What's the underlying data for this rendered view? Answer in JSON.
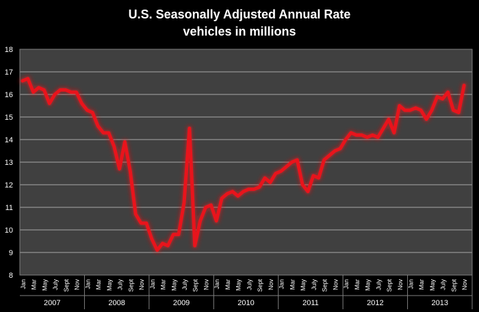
{
  "chart_data": {
    "type": "line",
    "title": "U.S. Seasonally Adjusted Annual Rate",
    "subtitle": "vehicles in millions",
    "xlabel": "",
    "ylabel": "",
    "ylim": [
      8,
      18
    ],
    "yticks": [
      8,
      9,
      10,
      11,
      12,
      13,
      14,
      15,
      16,
      17,
      18
    ],
    "grid": true,
    "legend": "none",
    "month_tick_labels": [
      "Jan",
      "Mar",
      "May",
      "July",
      "Sept",
      "Nov"
    ],
    "years": [
      "2007",
      "2008",
      "2009",
      "2010",
      "2011",
      "2012",
      "2013"
    ],
    "series": [
      {
        "color": "#e8141c",
        "x": [
          "2007-01",
          "2007-02",
          "2007-03",
          "2007-04",
          "2007-05",
          "2007-06",
          "2007-07",
          "2007-08",
          "2007-09",
          "2007-10",
          "2007-11",
          "2007-12",
          "2008-01",
          "2008-02",
          "2008-03",
          "2008-04",
          "2008-05",
          "2008-06",
          "2008-07",
          "2008-08",
          "2008-09",
          "2008-10",
          "2008-11",
          "2008-12",
          "2009-01",
          "2009-02",
          "2009-03",
          "2009-04",
          "2009-05",
          "2009-06",
          "2009-07",
          "2009-08",
          "2009-09",
          "2009-10",
          "2009-11",
          "2009-12",
          "2010-01",
          "2010-02",
          "2010-03",
          "2010-04",
          "2010-05",
          "2010-06",
          "2010-07",
          "2010-08",
          "2010-09",
          "2010-10",
          "2010-11",
          "2010-12",
          "2011-01",
          "2011-02",
          "2011-03",
          "2011-04",
          "2011-05",
          "2011-06",
          "2011-07",
          "2011-08",
          "2011-09",
          "2011-10",
          "2011-11",
          "2011-12",
          "2012-01",
          "2012-02",
          "2012-03",
          "2012-04",
          "2012-05",
          "2012-06",
          "2012-07",
          "2012-08",
          "2012-09",
          "2012-10",
          "2012-11",
          "2012-12",
          "2013-01",
          "2013-02",
          "2013-03",
          "2013-04",
          "2013-05",
          "2013-06",
          "2013-07",
          "2013-08",
          "2013-09",
          "2013-10",
          "2013-11"
        ],
        "values": [
          16.6,
          16.7,
          16.1,
          16.3,
          16.2,
          15.6,
          16.0,
          16.2,
          16.2,
          16.1,
          16.1,
          15.6,
          15.3,
          15.2,
          14.6,
          14.3,
          14.3,
          13.7,
          12.7,
          13.9,
          12.6,
          10.7,
          10.3,
          10.3,
          9.6,
          9.1,
          9.4,
          9.3,
          9.8,
          9.8,
          11.2,
          14.5,
          9.3,
          10.4,
          11.0,
          11.1,
          10.4,
          11.4,
          11.6,
          11.7,
          11.5,
          11.7,
          11.8,
          11.8,
          11.9,
          12.3,
          12.1,
          12.5,
          12.6,
          12.8,
          13.0,
          13.1,
          12.0,
          11.7,
          12.4,
          12.3,
          13.1,
          13.3,
          13.5,
          13.6,
          14.0,
          14.3,
          14.2,
          14.2,
          14.1,
          14.2,
          14.1,
          14.5,
          14.9,
          14.3,
          15.5,
          15.3,
          15.3,
          15.4,
          15.3,
          14.9,
          15.3,
          15.9,
          15.8,
          16.1,
          15.3,
          15.2,
          16.4
        ]
      }
    ]
  }
}
